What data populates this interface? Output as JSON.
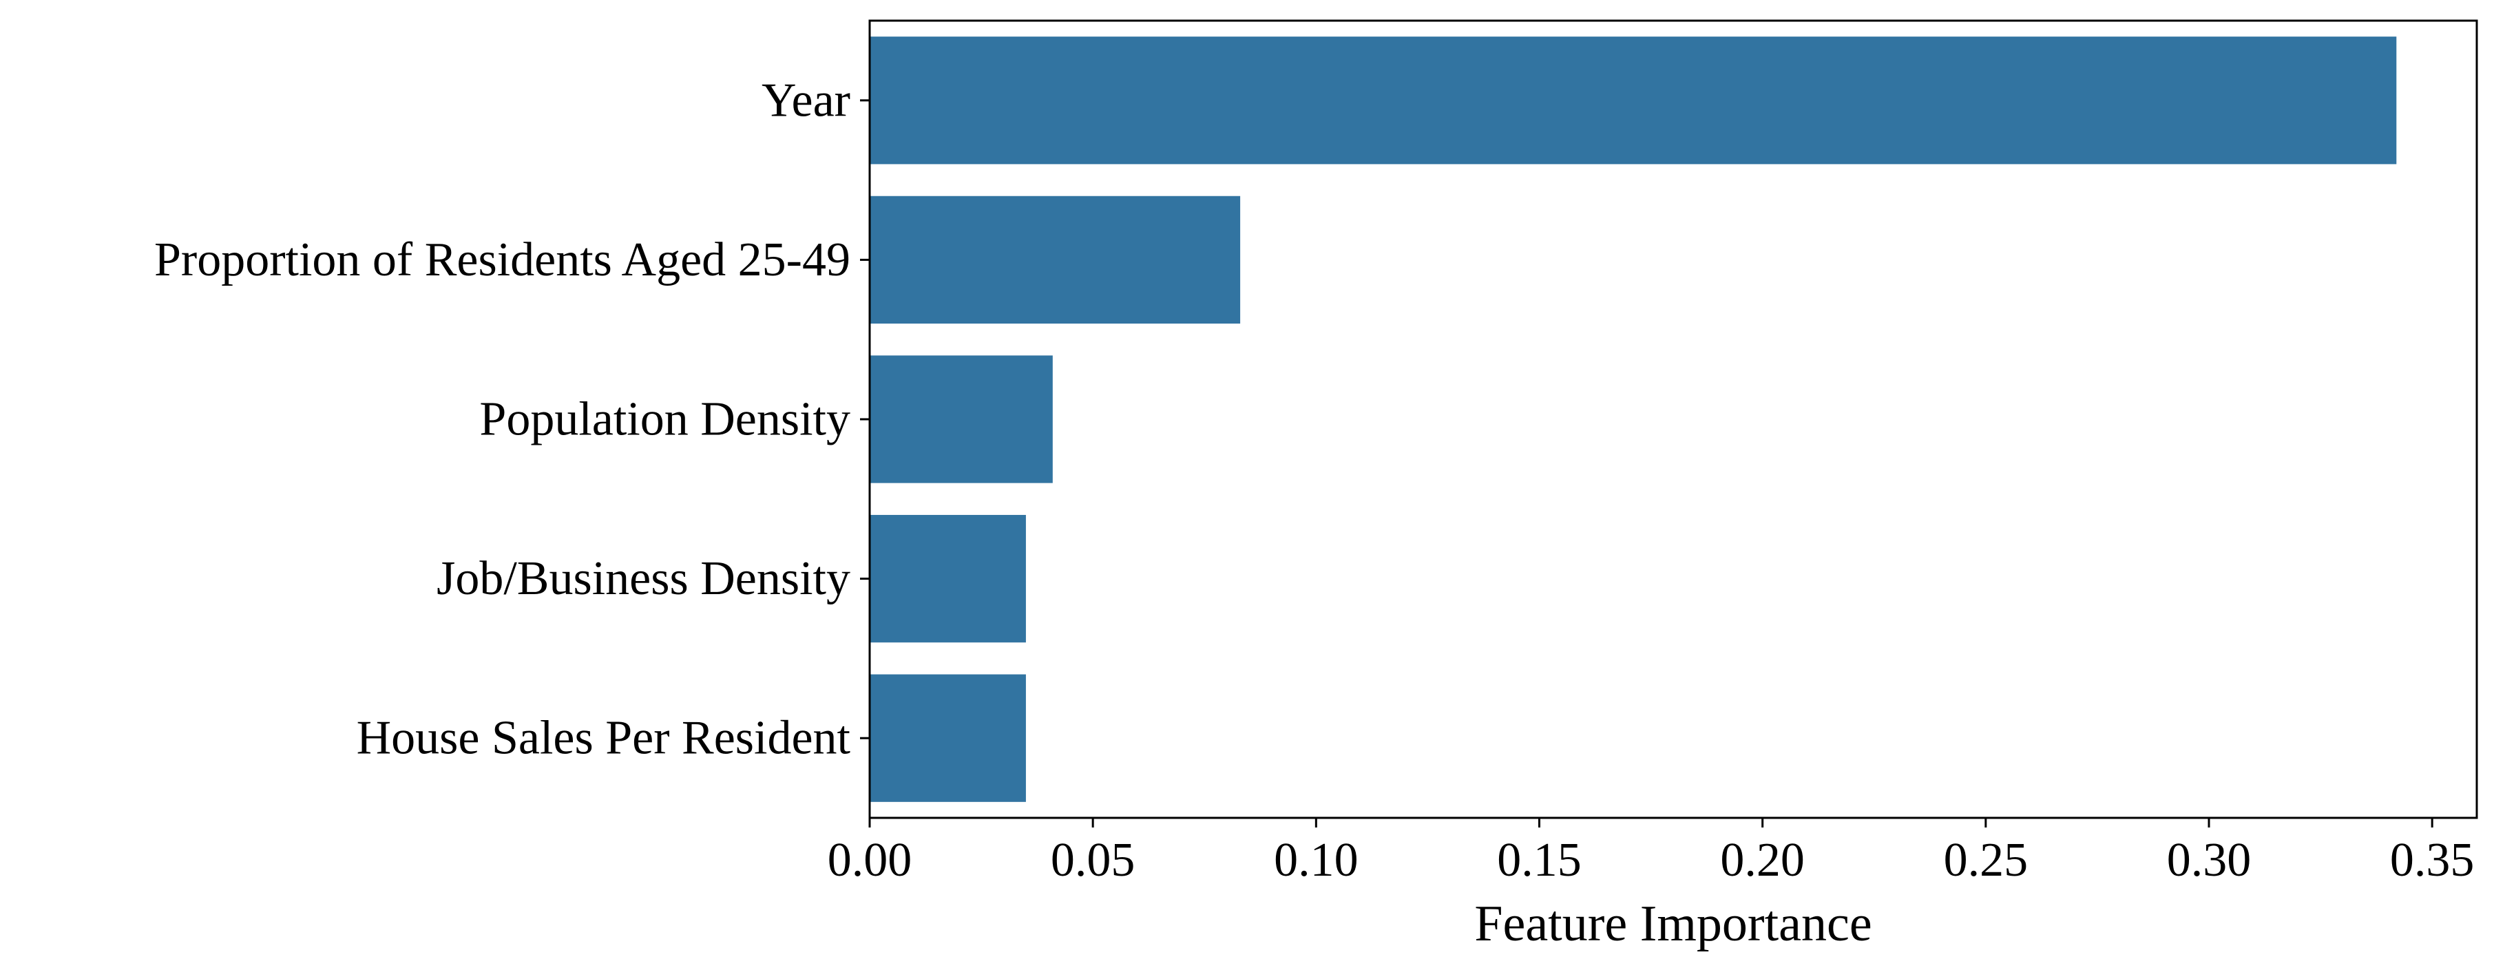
{
  "chart_data": {
    "type": "bar",
    "orientation": "horizontal",
    "categories": [
      "Year",
      "Proportion of Residents Aged 25-49",
      "Population Density",
      "Job/Business Density",
      "House Sales Per Resident"
    ],
    "values": [
      0.342,
      0.083,
      0.041,
      0.035,
      0.035
    ],
    "xlabel": "Feature Importance",
    "ylabel": "",
    "title": "",
    "xlim": [
      0.0,
      0.36
    ],
    "xticks": [
      0.0,
      0.05,
      0.1,
      0.15,
      0.2,
      0.25,
      0.3,
      0.35
    ],
    "xtick_labels": [
      "0.00",
      "0.05",
      "0.10",
      "0.15",
      "0.20",
      "0.25",
      "0.30",
      "0.35"
    ],
    "grid": false,
    "legend": "none",
    "bar_color": "#3274a1"
  }
}
